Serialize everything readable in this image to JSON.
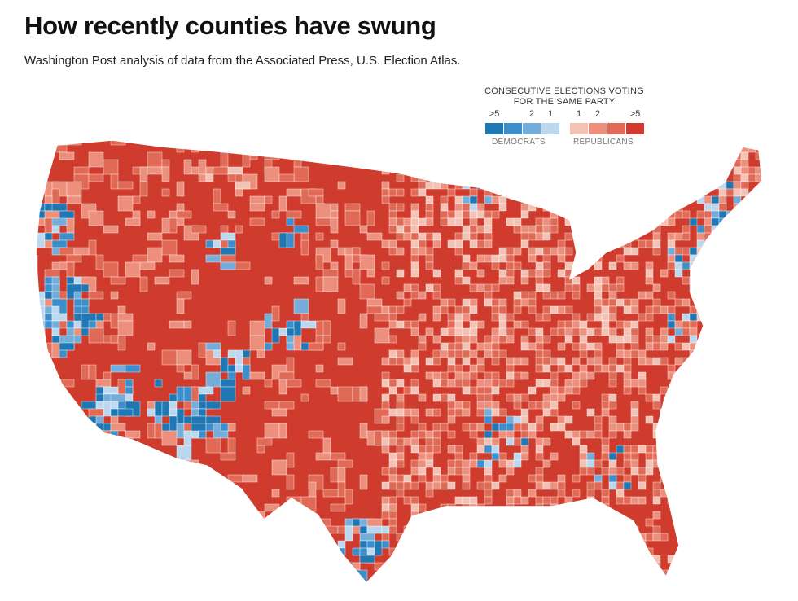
{
  "header": {
    "title": "How recently counties have swung",
    "subtitle": "Washington Post analysis of data from the Associated Press, U.S. Election Atlas."
  },
  "legend": {
    "title_line1": "CONSECUTIVE ELECTIONS VOTING",
    "title_line2": "FOR THE SAME PARTY",
    "dem_label": "DEMOCRATS",
    "rep_label": "REPUBLICANS",
    "steps": [
      {
        "label": ">5",
        "party": "democrats",
        "color": "#1f78b4"
      },
      {
        "label": "",
        "party": "democrats",
        "color": "#3d8fcb"
      },
      {
        "label": "2",
        "party": "democrats",
        "color": "#74add9"
      },
      {
        "label": "1",
        "party": "democrats",
        "color": "#bcd8ee"
      },
      {
        "label": "1",
        "party": "republicans",
        "color": "#f4c2b4"
      },
      {
        "label": "2",
        "party": "republicans",
        "color": "#ec8f7d"
      },
      {
        "label": "",
        "party": "republicans",
        "color": "#e06a55"
      },
      {
        "label": ">5",
        "party": "republicans",
        "color": "#cf3b2c"
      }
    ]
  },
  "map": {
    "base_color": "#cf3b2c",
    "border_color": "#ffffff"
  }
}
